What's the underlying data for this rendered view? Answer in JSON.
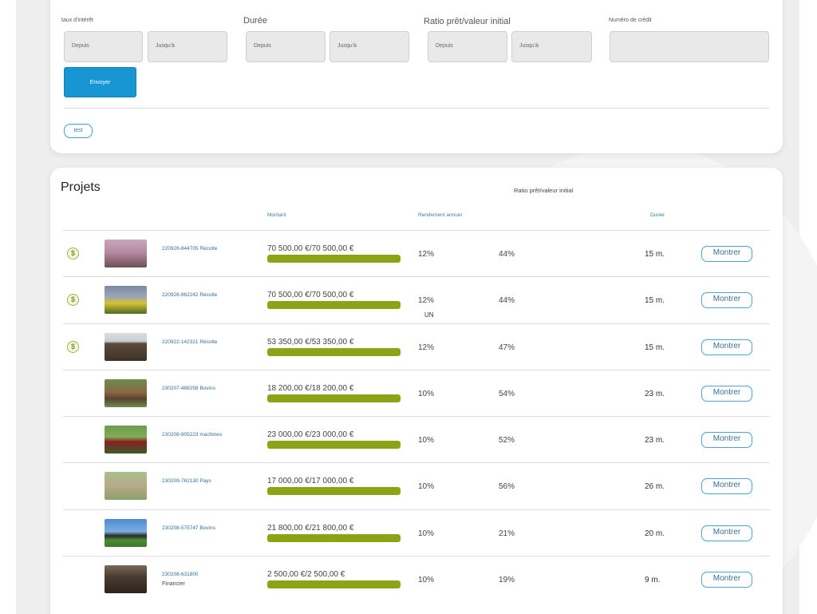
{
  "filters": {
    "interest_label": "taux d'intérêt",
    "duration_label": "Durée",
    "ratio_label": "Ratio prêt/valeur initial",
    "credit_label": "Numéro de crédit",
    "from_label": "Depuis",
    "to_label": "Jusqu'à",
    "send_label": "Envoyer",
    "test_label": "test"
  },
  "projects": {
    "title": "Projets",
    "headers": {
      "amount": "Montant",
      "yield": "Rendement annuel",
      "ratio": "Ratio prêt/valeur initial",
      "duration": "Durée"
    },
    "show_label": "Montrer",
    "stray_text": "UN",
    "rows": [
      {
        "id": "220926-844705 Récolte",
        "sub": "",
        "amount": "70 500,00 €/70 500,00 €",
        "funded_pct": 100,
        "yield": "12%",
        "ratio": "44%",
        "duration": "15 m.",
        "coin": true,
        "thumb": "orchard"
      },
      {
        "id": "220926-962242 Récolte",
        "sub": "",
        "amount": "70 500,00 €/70 500,00 €",
        "funded_pct": 100,
        "yield": "12%",
        "ratio": "44%",
        "duration": "15 m.",
        "coin": true,
        "thumb": "rapeseed-field"
      },
      {
        "id": "220922-142321 Récolte",
        "sub": "",
        "amount": "53 350,00 €/53 350,00 €",
        "funded_pct": 100,
        "yield": "12%",
        "ratio": "47%",
        "duration": "15 m.",
        "coin": true,
        "thumb": "ploughed-field"
      },
      {
        "id": "230207-488258 Bovins",
        "sub": "",
        "amount": "18 200,00 €/18 200,00 €",
        "funded_pct": 100,
        "yield": "10%",
        "ratio": "54%",
        "duration": "23 m.",
        "coin": false,
        "thumb": "cattle"
      },
      {
        "id": "230208-905223 machines",
        "sub": "",
        "amount": "23 000,00 €/23 000,00 €",
        "funded_pct": 100,
        "yield": "10%",
        "ratio": "52%",
        "duration": "23 m.",
        "coin": false,
        "thumb": "tractor"
      },
      {
        "id": "230209-762130 Pays",
        "sub": "",
        "amount": "17 000,00 €/17 000,00 €",
        "funded_pct": 100,
        "yield": "10%",
        "ratio": "56%",
        "duration": "26 m.",
        "coin": false,
        "thumb": "donkey"
      },
      {
        "id": "230208-575747 Bovins",
        "sub": "",
        "amount": "21 800,00 €/21 800,00 €",
        "funded_pct": 100,
        "yield": "10%",
        "ratio": "21%",
        "duration": "20 m.",
        "coin": false,
        "thumb": "cow-pasture"
      },
      {
        "id": "230208-631800",
        "sub": "Financier",
        "amount": "2 500,00 €/2 500,00 €",
        "funded_pct": 100,
        "yield": "10%",
        "ratio": "19%",
        "duration": "9 m.",
        "coin": false,
        "thumb": "barn"
      }
    ]
  },
  "colors": {
    "accent_blue": "#1895d3",
    "progress_green": "#8aa416",
    "link_blue": "#2f6f95"
  }
}
